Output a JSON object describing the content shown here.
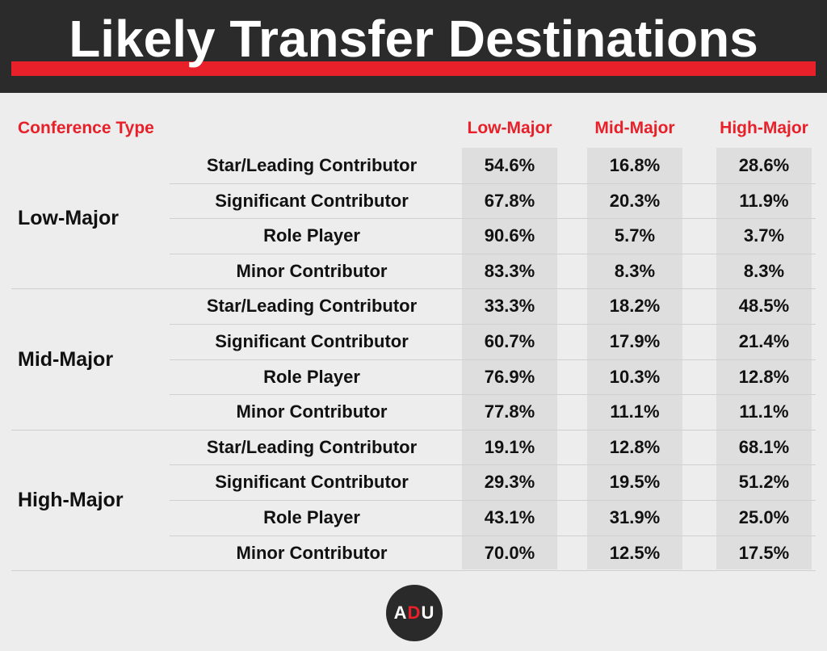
{
  "title": "Likely Transfer Destinations",
  "row_header": "Conference Type",
  "colors": {
    "accent": "#e8202a",
    "header_bg": "#2b2b2b",
    "column_bg": "#dedede"
  },
  "chart_data": {
    "type": "table",
    "title": "Likely Transfer Destinations",
    "row_header": "Conference Type",
    "columns": [
      "Low-Major",
      "Mid-Major",
      "High-Major"
    ],
    "groups": [
      {
        "name": "Low-Major",
        "rows": [
          {
            "role": "Star/Leading Contributor",
            "values": [
              "54.6%",
              "16.8%",
              "28.6%"
            ]
          },
          {
            "role": "Significant Contributor",
            "values": [
              "67.8%",
              "20.3%",
              "11.9%"
            ]
          },
          {
            "role": "Role Player",
            "values": [
              "90.6%",
              "5.7%",
              "3.7%"
            ]
          },
          {
            "role": "Minor Contributor",
            "values": [
              "83.3%",
              "8.3%",
              "8.3%"
            ]
          }
        ]
      },
      {
        "name": "Mid-Major",
        "rows": [
          {
            "role": "Star/Leading Contributor",
            "values": [
              "33.3%",
              "18.2%",
              "48.5%"
            ]
          },
          {
            "role": "Significant Contributor",
            "values": [
              "60.7%",
              "17.9%",
              "21.4%"
            ]
          },
          {
            "role": "Role Player",
            "values": [
              "76.9%",
              "10.3%",
              "12.8%"
            ]
          },
          {
            "role": "Minor Contributor",
            "values": [
              "77.8%",
              "11.1%",
              "11.1%"
            ]
          }
        ]
      },
      {
        "name": "High-Major",
        "rows": [
          {
            "role": "Star/Leading Contributor",
            "values": [
              "19.1%",
              "12.8%",
              "68.1%"
            ]
          },
          {
            "role": "Significant Contributor",
            "values": [
              "29.3%",
              "19.5%",
              "51.2%"
            ]
          },
          {
            "role": "Role Player",
            "values": [
              "43.1%",
              "31.9%",
              "25.0%"
            ]
          },
          {
            "role": "Minor Contributor",
            "values": [
              "70.0%",
              "12.5%",
              "17.5%"
            ]
          }
        ]
      }
    ]
  },
  "logo": {
    "text_a": "A",
    "text_d": "D",
    "text_u": "U"
  }
}
